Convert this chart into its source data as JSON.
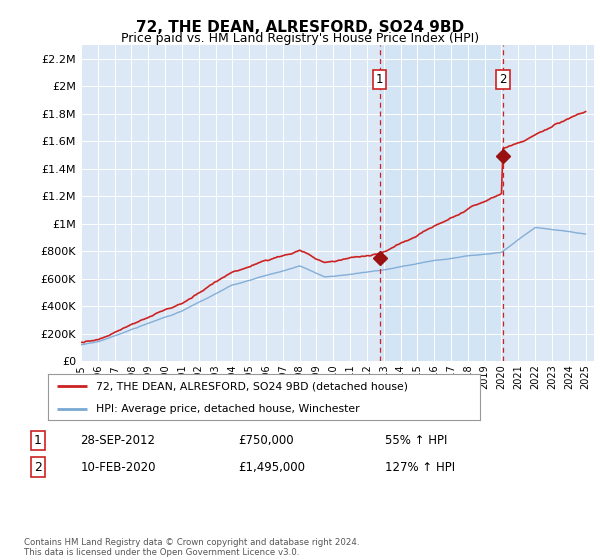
{
  "title": "72, THE DEAN, ALRESFORD, SO24 9BD",
  "subtitle": "Price paid vs. HM Land Registry's House Price Index (HPI)",
  "ylim": [
    0,
    2300000
  ],
  "yticks": [
    0,
    200000,
    400000,
    600000,
    800000,
    1000000,
    1200000,
    1400000,
    1600000,
    1800000,
    2000000,
    2200000
  ],
  "ytick_labels": [
    "£0",
    "£200K",
    "£400K",
    "£600K",
    "£800K",
    "£1M",
    "£1.2M",
    "£1.4M",
    "£1.6M",
    "£1.8M",
    "£2M",
    "£2.2M"
  ],
  "x_start_year": 1995,
  "x_end_year": 2025,
  "sale1_date": "28-SEP-2012",
  "sale1_price": 750000,
  "sale1_pct": "55%",
  "sale1_x": 2012.75,
  "sale2_date": "10-FEB-2020",
  "sale2_price": 1495000,
  "sale2_pct": "127%",
  "sale2_x": 2020.1,
  "legend_line1": "72, THE DEAN, ALRESFORD, SO24 9BD (detached house)",
  "legend_line2": "HPI: Average price, detached house, Winchester",
  "footer": "Contains HM Land Registry data © Crown copyright and database right 2024.\nThis data is licensed under the Open Government Licence v3.0.",
  "hpi_color": "#7aa8d4",
  "sold_color": "#cc2222",
  "bg_color": "#dce8f5",
  "plot_bg": "#ffffff",
  "shade_color": "#d0e4f5",
  "vline_color": "#cc2222",
  "marker_color": "#991111",
  "grid_color": "#c0c8d8",
  "title_fontsize": 11,
  "subtitle_fontsize": 9
}
